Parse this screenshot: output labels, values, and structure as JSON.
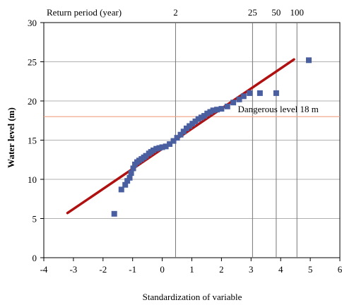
{
  "chart_data": {
    "type": "scatter",
    "xlabel": "Standardization of variable",
    "ylabel": "Water level (m)",
    "xlim": [
      -4,
      6
    ],
    "ylim": [
      0,
      30
    ],
    "xticks": [
      -4,
      -3,
      -2,
      -1,
      0,
      1,
      2,
      3,
      4,
      5,
      6
    ],
    "yticks": [
      0,
      5,
      10,
      15,
      20,
      25,
      30
    ],
    "grid": {
      "horizontal": true,
      "vertical": false
    },
    "colors": {
      "points": "#4a5fa0",
      "fit_line": "#b01010",
      "danger_line": "#f0a080",
      "grid": "#b0b0b0"
    },
    "return_period_axis": {
      "label": "Return period (year)",
      "marks": [
        {
          "label": "2",
          "x": 0.45
        },
        {
          "label": "25",
          "x": 3.05
        },
        {
          "label": "50",
          "x": 3.85
        },
        {
          "label": "100",
          "x": 4.55
        }
      ]
    },
    "reference_line": {
      "label": "Dangerous level 18 m",
      "y": 18
    },
    "fit_line": {
      "x": [
        -3.2,
        4.45
      ],
      "y": [
        5.7,
        25.3
      ]
    },
    "points": [
      {
        "x": -1.62,
        "y": 5.6
      },
      {
        "x": -1.38,
        "y": 8.7
      },
      {
        "x": -1.25,
        "y": 9.3
      },
      {
        "x": -1.18,
        "y": 9.8
      },
      {
        "x": -1.1,
        "y": 10.2
      },
      {
        "x": -1.05,
        "y": 10.8
      },
      {
        "x": -0.98,
        "y": 11.4
      },
      {
        "x": -0.92,
        "y": 11.9
      },
      {
        "x": -0.85,
        "y": 12.2
      },
      {
        "x": -0.78,
        "y": 12.4
      },
      {
        "x": -0.7,
        "y": 12.6
      },
      {
        "x": -0.62,
        "y": 12.8
      },
      {
        "x": -0.55,
        "y": 13.0
      },
      {
        "x": -0.45,
        "y": 13.3
      },
      {
        "x": -0.38,
        "y": 13.5
      },
      {
        "x": -0.3,
        "y": 13.7
      },
      {
        "x": -0.2,
        "y": 13.9
      },
      {
        "x": -0.1,
        "y": 14.0
      },
      {
        "x": 0.0,
        "y": 14.1
      },
      {
        "x": 0.12,
        "y": 14.2
      },
      {
        "x": 0.25,
        "y": 14.5
      },
      {
        "x": 0.38,
        "y": 14.9
      },
      {
        "x": 0.5,
        "y": 15.3
      },
      {
        "x": 0.62,
        "y": 15.7
      },
      {
        "x": 0.72,
        "y": 16.1
      },
      {
        "x": 0.82,
        "y": 16.5
      },
      {
        "x": 0.92,
        "y": 16.8
      },
      {
        "x": 1.02,
        "y": 17.1
      },
      {
        "x": 1.12,
        "y": 17.4
      },
      {
        "x": 1.22,
        "y": 17.7
      },
      {
        "x": 1.32,
        "y": 17.9
      },
      {
        "x": 1.42,
        "y": 18.1
      },
      {
        "x": 1.52,
        "y": 18.4
      },
      {
        "x": 1.62,
        "y": 18.6
      },
      {
        "x": 1.72,
        "y": 18.8
      },
      {
        "x": 1.85,
        "y": 18.9
      },
      {
        "x": 2.0,
        "y": 19.0
      },
      {
        "x": 2.2,
        "y": 19.3
      },
      {
        "x": 2.4,
        "y": 19.8
      },
      {
        "x": 2.6,
        "y": 20.2
      },
      {
        "x": 2.75,
        "y": 20.6
      },
      {
        "x": 2.95,
        "y": 21.0
      },
      {
        "x": 3.3,
        "y": 21.0
      },
      {
        "x": 3.85,
        "y": 21.0
      },
      {
        "x": 4.95,
        "y": 25.2
      }
    ]
  }
}
